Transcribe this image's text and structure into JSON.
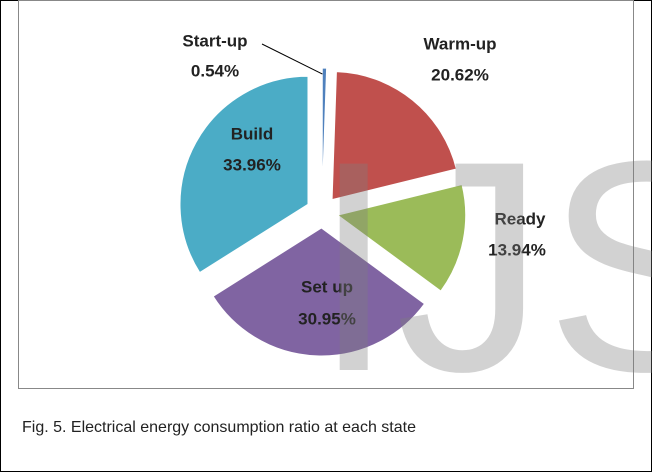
{
  "chart_data": {
    "type": "pie",
    "categories": [
      "Start-up",
      "Warm-up",
      "Ready",
      "Set up",
      "Build"
    ],
    "values": [
      0.54,
      20.62,
      13.94,
      30.95,
      33.96
    ],
    "value_labels": [
      "0.54%",
      "20.62%",
      "13.94%",
      "30.95%",
      "33.96%"
    ],
    "colors": [
      "#4f81bd",
      "#c0504d",
      "#9bbb59",
      "#8064a2",
      "#4bacc6"
    ],
    "caption": "Fig. 5. Electrical energy consumption ratio at each state",
    "watermark": "IJS"
  }
}
